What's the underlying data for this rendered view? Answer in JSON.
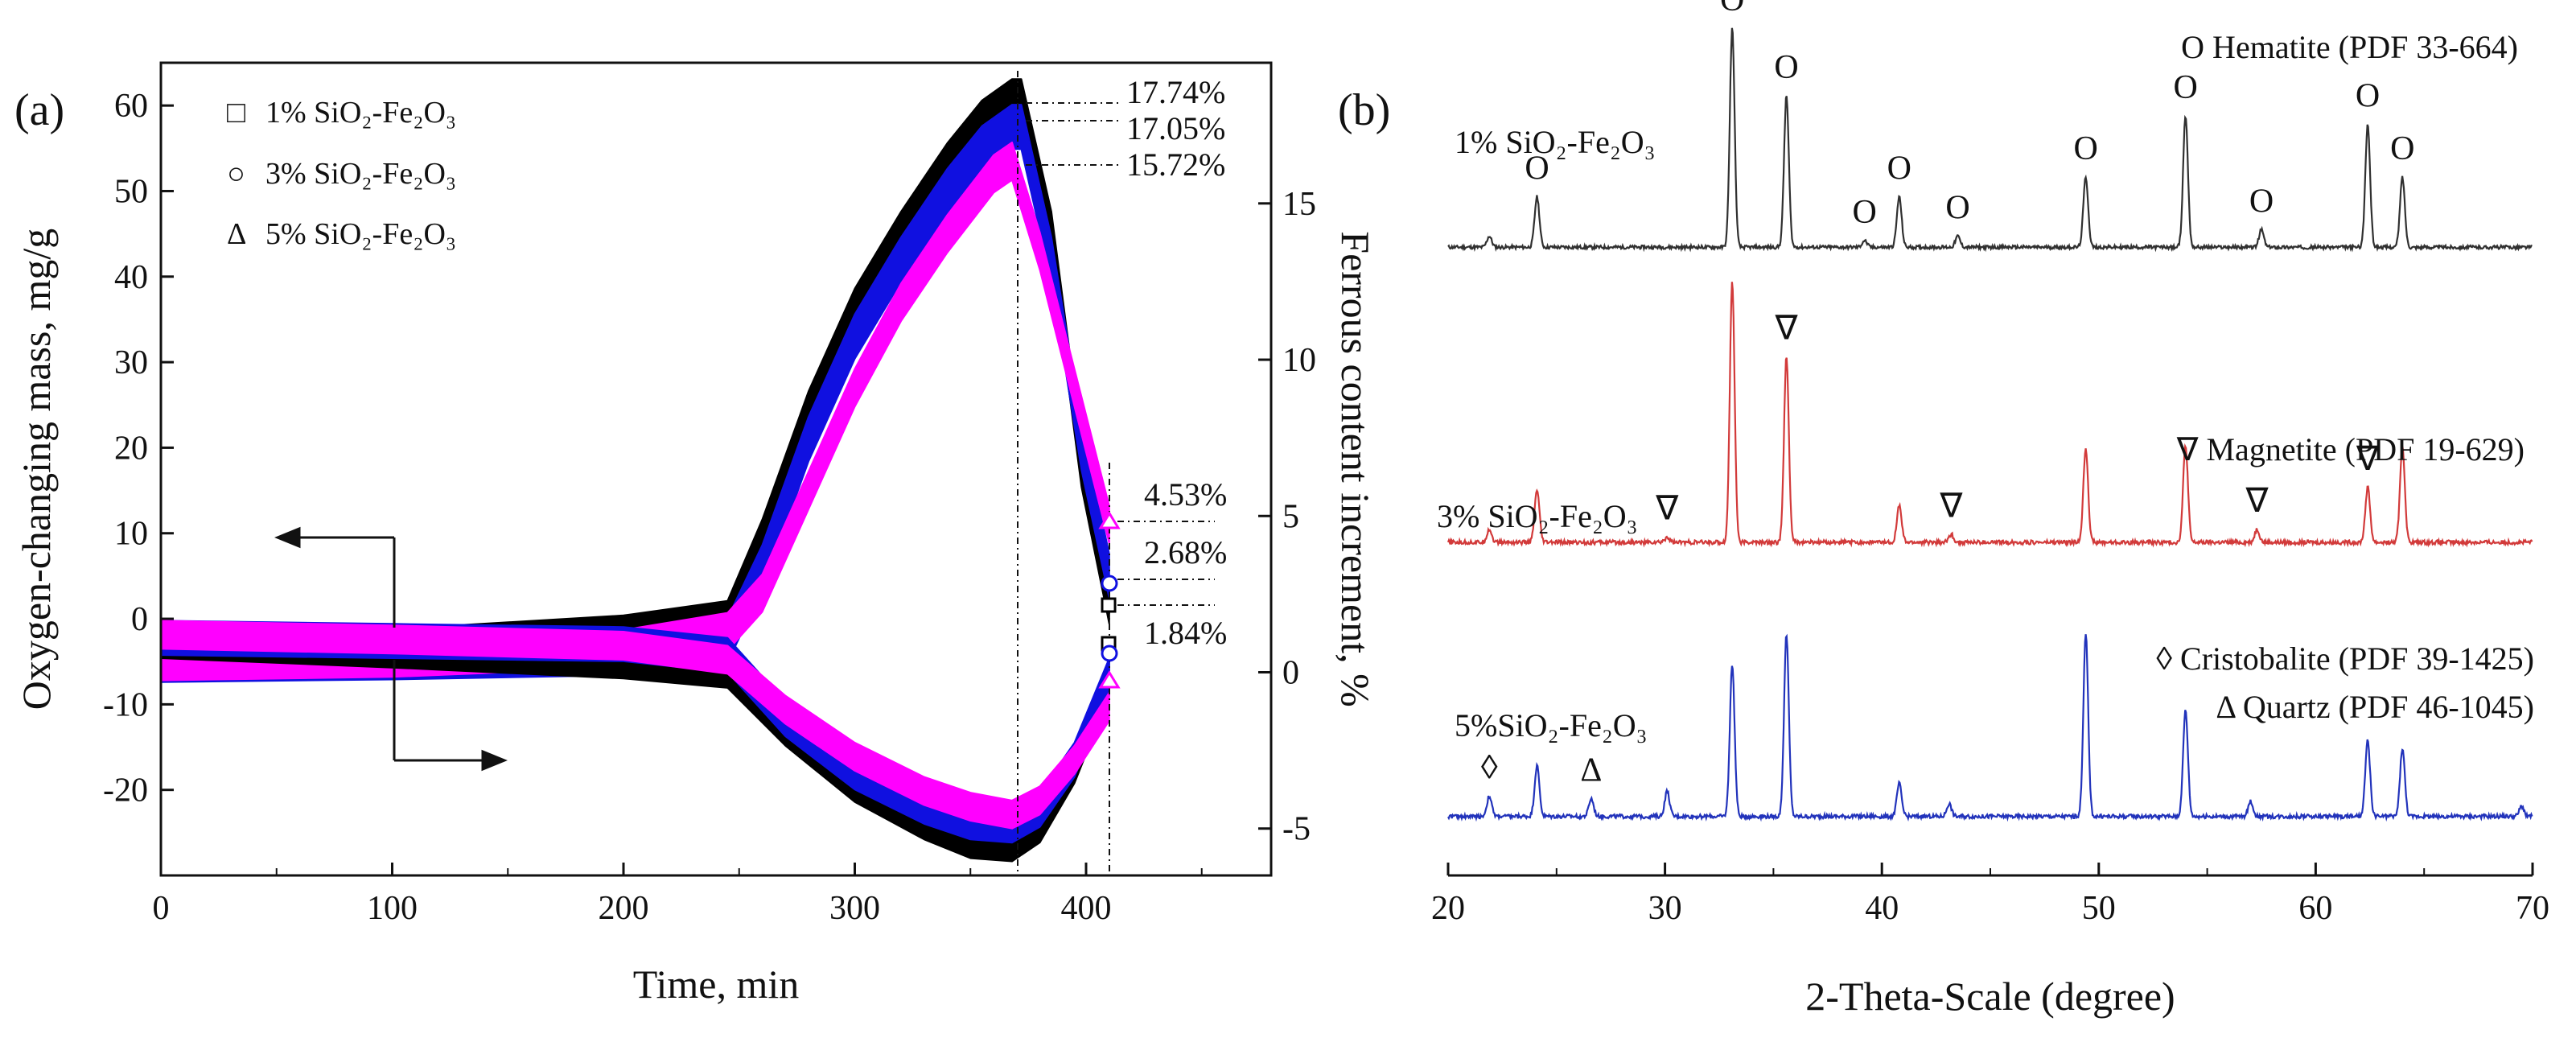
{
  "chart_data": [
    {
      "panel_label": "(a)",
      "type": "line",
      "xlabel": "Time, min",
      "ylabel_left": "Oxygen-changing mass, mg/g",
      "ylabel_right": "Ferrous content increment, %",
      "xlim": [
        0,
        480
      ],
      "ylim_left": [
        -30,
        65
      ],
      "ylim_right": [
        -6.5,
        19.5
      ],
      "xticks": [
        "0",
        "100",
        "200",
        "300",
        "400"
      ],
      "yticks_left": [
        "-20",
        "-10",
        "0",
        "10",
        "20",
        "30",
        "40",
        "50",
        "60"
      ],
      "yticks_right": [
        "-5",
        "0",
        "5",
        "10",
        "15"
      ],
      "legend": [
        {
          "marker": "□",
          "label": "1% SiO₂-Fe₂O₃",
          "color": "#000000"
        },
        {
          "marker": "○",
          "label": "3% SiO₂-Fe₂O₃",
          "color": "#1010e0"
        },
        {
          "marker": "Δ",
          "label": "5% SiO₂-Fe₂O₃",
          "color": "#ff00ff"
        }
      ],
      "annotations": [
        "17.74%",
        "17.05%",
        "15.72%",
        "4.53%",
        "2.68%",
        "1.84%"
      ],
      "series": [
        {
          "name": "1% SiO₂-Fe₂O₃ oxygen mass",
          "axis": "left",
          "color": "#000000",
          "half_width": 2.6,
          "points": [
            [
              0,
              -4.5
            ],
            [
              100,
              -3.8
            ],
            [
              200,
              -2.2
            ],
            [
              245,
              -0.5
            ],
            [
              260,
              9
            ],
            [
              280,
              24
            ],
            [
              300,
              36
            ],
            [
              320,
              45
            ],
            [
              340,
              53
            ],
            [
              355,
              58
            ],
            [
              368,
              60.5
            ],
            [
              372,
              60.5
            ],
            [
              385,
              45
            ],
            [
              398,
              18
            ],
            [
              410,
              2
            ]
          ]
        },
        {
          "name": "3% SiO₂-Fe₂O₃ oxygen mass",
          "axis": "left",
          "color": "#1010e0",
          "half_width": 2.6,
          "points": [
            [
              0,
              -4.8
            ],
            [
              100,
              -4.5
            ],
            [
              200,
              -4
            ],
            [
              245,
              -2.5
            ],
            [
              260,
              6
            ],
            [
              280,
              21
            ],
            [
              300,
              33
            ],
            [
              320,
              42
            ],
            [
              340,
              50
            ],
            [
              355,
              55
            ],
            [
              368,
              57.5
            ],
            [
              372,
              57.5
            ],
            [
              385,
              42
            ],
            [
              398,
              20
            ],
            [
              410,
              5
            ]
          ]
        },
        {
          "name": "5% SiO₂-Fe₂O₃ oxygen mass",
          "axis": "left",
          "color": "#ff00ff",
          "half_width": 2.2,
          "points": [
            [
              0,
              -5
            ],
            [
              100,
              -4.6
            ],
            [
              200,
              -3.5
            ],
            [
              245,
              -1.5
            ],
            [
              260,
              3
            ],
            [
              280,
              15
            ],
            [
              300,
              27
            ],
            [
              320,
              37
            ],
            [
              340,
              45
            ],
            [
              360,
              52
            ],
            [
              368,
              53.5
            ],
            [
              380,
              43
            ],
            [
              395,
              27
            ],
            [
              410,
              11
            ]
          ]
        },
        {
          "name": "1% SiO₂-Fe₂O₃ ferrous increment",
          "axis": "right",
          "color": "#000000",
          "half_width": 0.55,
          "points": [
            [
              0,
              1.0
            ],
            [
              100,
              0.7
            ],
            [
              200,
              0.35
            ],
            [
              245,
              0.05
            ],
            [
              270,
              -1.8
            ],
            [
              300,
              -3.6
            ],
            [
              330,
              -4.8
            ],
            [
              350,
              -5.4
            ],
            [
              368,
              -5.5
            ],
            [
              380,
              -4.9
            ],
            [
              395,
              -3.0
            ],
            [
              410,
              -0.2
            ]
          ]
        },
        {
          "name": "3% SiO₂-Fe₂O₃ ferrous increment",
          "axis": "right",
          "color": "#1010e0",
          "half_width": 0.55,
          "points": [
            [
              0,
              1.1
            ],
            [
              100,
              1.0
            ],
            [
              200,
              0.9
            ],
            [
              245,
              0.55
            ],
            [
              270,
              -1.5
            ],
            [
              300,
              -3.2
            ],
            [
              330,
              -4.3
            ],
            [
              350,
              -4.8
            ],
            [
              368,
              -4.9
            ],
            [
              380,
              -4.4
            ],
            [
              395,
              -2.8
            ],
            [
              410,
              -0.1
            ]
          ]
        },
        {
          "name": "5% SiO₂-Fe₂O₃ ferrous increment",
          "axis": "right",
          "color": "#ff00ff",
          "half_width": 0.45,
          "points": [
            [
              0,
              1.2
            ],
            [
              100,
              1.05
            ],
            [
              200,
              0.85
            ],
            [
              245,
              0.4
            ],
            [
              270,
              -1.2
            ],
            [
              300,
              -2.7
            ],
            [
              330,
              -3.8
            ],
            [
              350,
              -4.3
            ],
            [
              368,
              -4.55
            ],
            [
              380,
              -4.1
            ],
            [
              395,
              -2.8
            ],
            [
              410,
              -1.1
            ]
          ]
        }
      ]
    },
    {
      "panel_label": "(b)",
      "type": "line",
      "xlabel": "2-Theta-Scale (degree)",
      "xlim": [
        20,
        70
      ],
      "xticks": [
        "20",
        "30",
        "40",
        "50",
        "60",
        "70"
      ],
      "phase_legend": [
        "O Hematite (PDF 33-664)",
        "∇ Magnetite (PDF 19-629)",
        "◊ Cristobalite (PDF 39-1425)",
        "Δ Quartz (PDF 46-1045)"
      ],
      "series": [
        {
          "name": "1% SiO₂-Fe₂O₃",
          "color": "#303030",
          "baseline_frac": 0.255,
          "height_frac": 0.26,
          "peaks": [
            [
              21.9,
              0.05
            ],
            [
              24.1,
              0.23
            ],
            [
              33.1,
              1.0
            ],
            [
              35.6,
              0.69
            ],
            [
              39.2,
              0.03
            ],
            [
              40.8,
              0.23
            ],
            [
              43.5,
              0.05
            ],
            [
              49.4,
              0.32
            ],
            [
              54.0,
              0.6
            ],
            [
              57.5,
              0.08
            ],
            [
              62.4,
              0.56
            ],
            [
              64.0,
              0.32
            ]
          ],
          "markers": [
            {
              "symbol": "O",
              "x": 24.1
            },
            {
              "symbol": "O",
              "x": 33.1
            },
            {
              "symbol": "O",
              "x": 35.6
            },
            {
              "symbol": "O",
              "x": 39.2
            },
            {
              "symbol": "O",
              "x": 40.8
            },
            {
              "symbol": "O",
              "x": 43.5
            },
            {
              "symbol": "O",
              "x": 49.4
            },
            {
              "symbol": "O",
              "x": 54.0
            },
            {
              "symbol": "O",
              "x": 57.5
            },
            {
              "symbol": "O",
              "x": 62.4
            },
            {
              "symbol": "O",
              "x": 64.0
            }
          ]
        },
        {
          "name": "3% SiO₂-Fe₂O₃",
          "color": "#d23a3a",
          "baseline_frac": 0.605,
          "height_frac": 0.31,
          "peaks": [
            [
              21.9,
              0.05
            ],
            [
              24.1,
              0.2
            ],
            [
              30.1,
              0.02
            ],
            [
              33.1,
              1.0
            ],
            [
              35.6,
              0.71
            ],
            [
              40.8,
              0.14
            ],
            [
              43.2,
              0.03
            ],
            [
              49.4,
              0.36
            ],
            [
              54.0,
              0.37
            ],
            [
              57.3,
              0.05
            ],
            [
              62.4,
              0.21
            ],
            [
              64.0,
              0.37
            ]
          ],
          "markers": [
            {
              "symbol": "∇",
              "x": 30.1
            },
            {
              "symbol": "∇",
              "x": 35.6
            },
            {
              "symbol": "∇",
              "x": 43.2
            },
            {
              "symbol": "∇",
              "x": 57.3
            },
            {
              "symbol": "∇",
              "x": 62.4
            }
          ]
        },
        {
          "name": "5%SiO₂-Fe₂O₃",
          "color": "#2233bb",
          "baseline_frac": 0.93,
          "height_frac": 0.3,
          "peaks": [
            [
              21.9,
              0.08
            ],
            [
              24.1,
              0.2
            ],
            [
              26.6,
              0.07
            ],
            [
              30.1,
              0.1
            ],
            [
              33.1,
              0.6
            ],
            [
              35.6,
              0.72
            ],
            [
              40.8,
              0.13
            ],
            [
              43.1,
              0.05
            ],
            [
              49.4,
              0.72
            ],
            [
              54.0,
              0.42
            ],
            [
              57.0,
              0.06
            ],
            [
              62.4,
              0.3
            ],
            [
              64.0,
              0.27
            ],
            [
              69.5,
              0.04
            ]
          ],
          "markers": [
            {
              "symbol": "◊",
              "x": 21.9
            },
            {
              "symbol": "Δ",
              "x": 26.6
            }
          ]
        }
      ]
    }
  ]
}
